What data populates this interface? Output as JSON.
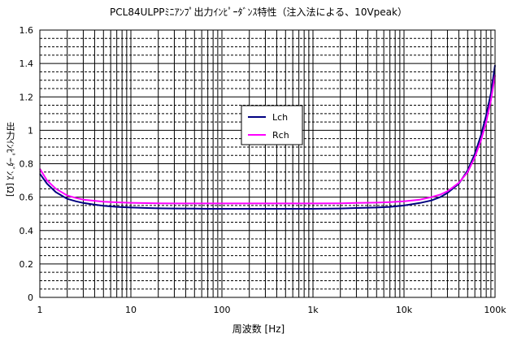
{
  "chart_data": {
    "type": "line",
    "title": "PCL84ULPPﾐﾆｱﾝﾌﾟ出力ｲﾝﾋﾟｰﾀﾞﾝｽ特性（注入法による、10Vpeak）",
    "xlabel": "周波数 [Hz]",
    "ylabel": "出力ｲﾝﾋﾟｰﾀﾞﾝｽ [Ω]",
    "x_scale": "log",
    "xlim": [
      1,
      100000
    ],
    "ylim": [
      0,
      1.6
    ],
    "x_ticks": [
      1,
      10,
      100,
      1000,
      10000,
      100000
    ],
    "x_tick_labels": [
      "1",
      "10",
      "100",
      "1k",
      "10k",
      "100k"
    ],
    "y_ticks": [
      0,
      0.2,
      0.4,
      0.6,
      0.8,
      1.0,
      1.2,
      1.4,
      1.6
    ],
    "y_tick_labels": [
      "0",
      "0.2",
      "0.4",
      "0.6",
      "0.8",
      "1",
      "1.2",
      "1.4",
      "1.6"
    ],
    "grid": true,
    "legend_position": "center",
    "series": [
      {
        "name": "Lch",
        "color": "#000080",
        "x": [
          1,
          1.2,
          1.5,
          2,
          2.5,
          3,
          4,
          5,
          7,
          10,
          15,
          20,
          30,
          50,
          70,
          100,
          200,
          300,
          500,
          700,
          1000,
          2000,
          3000,
          5000,
          7000,
          10000,
          15000,
          20000,
          25000,
          30000,
          40000,
          50000,
          60000,
          70000,
          80000,
          90000,
          100000
        ],
        "y": [
          0.74,
          0.68,
          0.63,
          0.59,
          0.575,
          0.565,
          0.555,
          0.548,
          0.542,
          0.538,
          0.535,
          0.533,
          0.532,
          0.531,
          0.53,
          0.53,
          0.53,
          0.53,
          0.53,
          0.53,
          0.53,
          0.532,
          0.535,
          0.538,
          0.542,
          0.55,
          0.565,
          0.58,
          0.6,
          0.625,
          0.68,
          0.76,
          0.86,
          0.97,
          1.09,
          1.22,
          1.39
        ]
      },
      {
        "name": "Rch",
        "color": "#FF00FF",
        "x": [
          1,
          1.2,
          1.5,
          2,
          2.5,
          3,
          4,
          5,
          7,
          10,
          15,
          20,
          30,
          50,
          70,
          100,
          200,
          300,
          500,
          700,
          1000,
          2000,
          3000,
          5000,
          7000,
          10000,
          15000,
          20000,
          25000,
          30000,
          40000,
          50000,
          60000,
          70000,
          80000,
          90000,
          100000
        ],
        "y": [
          0.77,
          0.7,
          0.65,
          0.61,
          0.595,
          0.585,
          0.578,
          0.573,
          0.569,
          0.566,
          0.564,
          0.563,
          0.562,
          0.562,
          0.562,
          0.562,
          0.562,
          0.562,
          0.562,
          0.562,
          0.562,
          0.563,
          0.565,
          0.567,
          0.57,
          0.575,
          0.585,
          0.6,
          0.615,
          0.635,
          0.685,
          0.75,
          0.84,
          0.94,
          1.05,
          1.18,
          1.33
        ]
      }
    ]
  }
}
